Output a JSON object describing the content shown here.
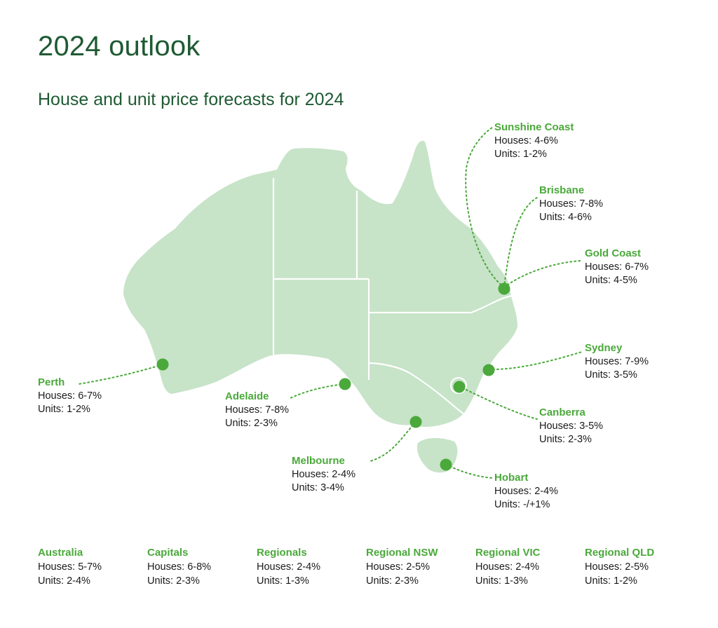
{
  "title": "2024 outlook",
  "subtitle": "House and unit price forecasts for 2024",
  "colors": {
    "heading": "#1f5a33",
    "accent": "#4aa93a",
    "land": "#c7e3c8",
    "border": "#ffffff",
    "text": "#1a1a1a"
  },
  "cities": {
    "sunshine_coast": {
      "name": "Sunshine Coast",
      "houses": "Houses: 4-6%",
      "units": "Units: 1-2%"
    },
    "brisbane": {
      "name": "Brisbane",
      "houses": "Houses: 7-8%",
      "units": "Units: 4-6%"
    },
    "gold_coast": {
      "name": "Gold Coast",
      "houses": "Houses: 6-7%",
      "units": "Units: 4-5%"
    },
    "sydney": {
      "name": "Sydney",
      "houses": "Houses: 7-9%",
      "units": "Units: 3-5%"
    },
    "canberra": {
      "name": "Canberra",
      "houses": "Houses: 3-5%",
      "units": "Units: 2-3%"
    },
    "hobart": {
      "name": "Hobart",
      "houses": "Houses: 2-4%",
      "units": "Units: -/+1%"
    },
    "melbourne": {
      "name": "Melbourne",
      "houses": "Houses: 2-4%",
      "units": "Units: 3-4%"
    },
    "adelaide": {
      "name": "Adelaide",
      "houses": "Houses: 7-8%",
      "units": "Units: 2-3%"
    },
    "perth": {
      "name": "Perth",
      "houses": "Houses: 6-7%",
      "units": "Units: 1-2%"
    }
  },
  "summary": [
    {
      "name": "Australia",
      "houses": "Houses: 5-7%",
      "units": "Units: 2-4%"
    },
    {
      "name": "Capitals",
      "houses": "Houses: 6-8%",
      "units": "Units: 2-3%"
    },
    {
      "name": "Regionals",
      "houses": "Houses: 2-4%",
      "units": "Units: 1-3%"
    },
    {
      "name": "Regional NSW",
      "houses": "Houses: 2-5%",
      "units": "Units: 2-3%"
    },
    {
      "name": "Regional VIC",
      "houses": "Houses: 2-4%",
      "units": "Units: 1-3%"
    },
    {
      "name": "Regional QLD",
      "houses": "Houses: 2-5%",
      "units": "Units: 1-2%"
    }
  ]
}
